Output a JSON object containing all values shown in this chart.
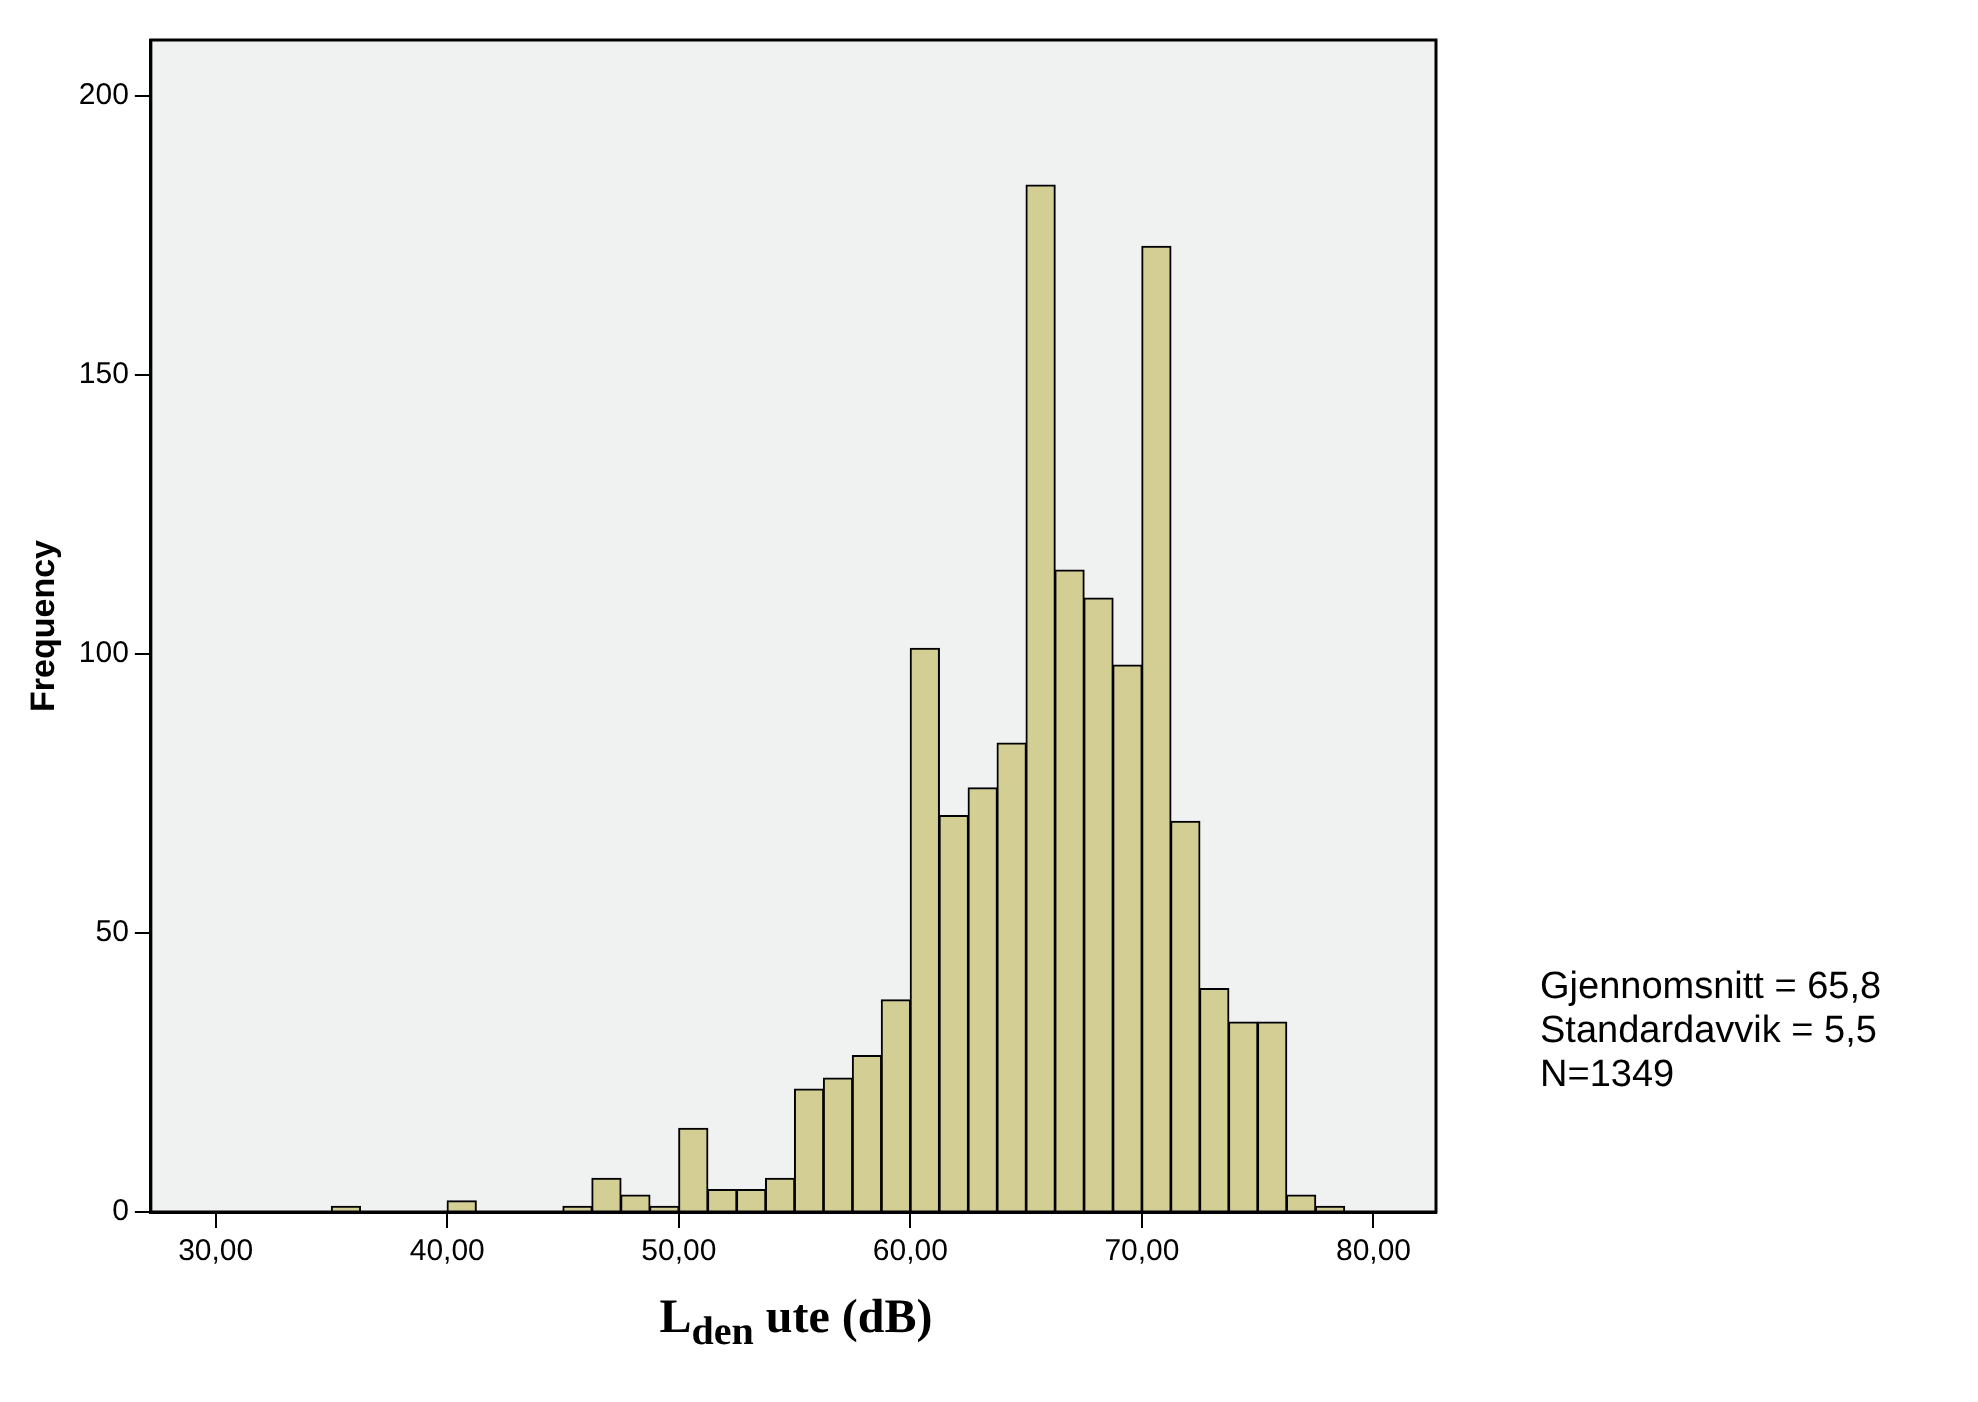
{
  "chart_data": {
    "type": "histogram",
    "xlabel": "L$_{den}$ ute (dB)",
    "ylabel": "Frequency",
    "bins": [
      35,
      36.25,
      37.5,
      38.75,
      40,
      41.25,
      42.5,
      43.75,
      45,
      46.25,
      47.5,
      48.75,
      50,
      51.25,
      52.5,
      53.75,
      55,
      56.25,
      57.5,
      58.75,
      60,
      61.25,
      62.5,
      63.75,
      65,
      66.25,
      67.5,
      68.75,
      70,
      71.25,
      72.5,
      73.75,
      75,
      76.25,
      77.5,
      78.75
    ],
    "values": [
      1,
      0,
      0,
      0,
      2,
      0,
      0,
      0,
      1,
      6,
      3,
      1,
      15,
      4,
      4,
      6,
      22,
      24,
      28,
      38,
      101,
      71,
      76,
      84,
      184,
      115,
      110,
      98,
      173,
      70,
      40,
      34,
      34,
      3,
      1
    ],
    "color": "#d3ce94",
    "xlim": [
      27.2,
      82.7
    ],
    "xticks": [
      {
        "value": 30,
        "label": "30,00"
      },
      {
        "value": 40,
        "label": "40,00"
      },
      {
        "value": 50,
        "label": "50,00"
      },
      {
        "value": 60,
        "label": "60,00"
      },
      {
        "value": 70,
        "label": "70,00"
      },
      {
        "value": 80,
        "label": "80,00"
      }
    ],
    "ylim": [
      0,
      210
    ],
    "yticks": [
      0,
      50,
      100,
      150,
      200
    ],
    "grid": false,
    "legend": false,
    "annotations": [
      "Gjennomsnitt = 65,8",
      "Standardavvik = 5,5",
      "N=1349"
    ]
  }
}
